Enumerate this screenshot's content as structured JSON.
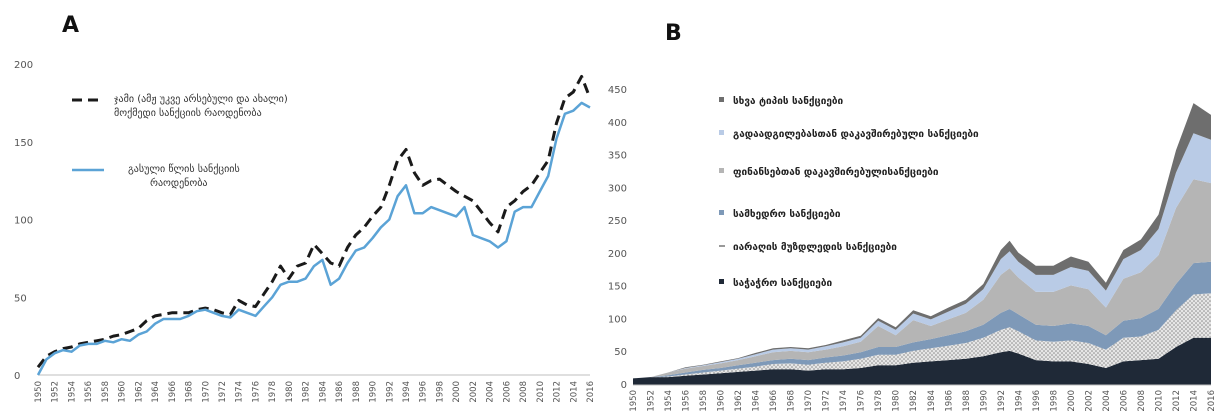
{
  "chart_data": [
    {
      "type": "line",
      "panel": "A",
      "title": "",
      "xlabel": "",
      "ylabel": "",
      "ylim": [
        0,
        200
      ],
      "yticks": [
        0,
        50,
        100,
        150,
        200
      ],
      "xticks": [
        "1950",
        "1952",
        "1954",
        "1956",
        "1958",
        "1960",
        "1962",
        "1964",
        "1966",
        "1968",
        "1970",
        "1972",
        "1974",
        "1976",
        "1978",
        "1980",
        "1982",
        "1984",
        "1986",
        "1988",
        "1990",
        "1992",
        "1994",
        "1996",
        "1998",
        "2000",
        "2002",
        "2004",
        "2006",
        "2008",
        "2010",
        "2012",
        "2014",
        "2016"
      ],
      "grid": false,
      "legend_position": "top-left",
      "x": [
        1950,
        1951,
        1952,
        1953,
        1954,
        1955,
        1956,
        1957,
        1958,
        1959,
        1960,
        1961,
        1962,
        1963,
        1964,
        1965,
        1966,
        1967,
        1968,
        1969,
        1970,
        1971,
        1972,
        1973,
        1974,
        1975,
        1976,
        1977,
        1978,
        1979,
        1980,
        1981,
        1982,
        1983,
        1984,
        1985,
        1986,
        1987,
        1988,
        1989,
        1990,
        1991,
        1992,
        1993,
        1994,
        1995,
        1996,
        1997,
        1998,
        1999,
        2000,
        2001,
        2002,
        2003,
        2004,
        2005,
        2006,
        2007,
        2008,
        2009,
        2010,
        2011,
        2012,
        2013,
        2014,
        2015,
        2016
      ],
      "series": [
        {
          "name": "ჯამი (ამჟ უკვე არსებული და ახალი) მოქმედი სანქციის რაოდენობა",
          "style": "dashed",
          "color": "#1a1a1a",
          "values": [
            5,
            12,
            15,
            17,
            18,
            20,
            21,
            22,
            23,
            25,
            26,
            28,
            30,
            35,
            38,
            39,
            40,
            40,
            40,
            42,
            43,
            42,
            40,
            39,
            48,
            45,
            44,
            52,
            60,
            70,
            62,
            70,
            72,
            84,
            78,
            72,
            70,
            82,
            90,
            95,
            102,
            108,
            122,
            138,
            145,
            130,
            122,
            125,
            126,
            122,
            118,
            115,
            112,
            105,
            98,
            92,
            108,
            112,
            118,
            122,
            130,
            138,
            162,
            178,
            182,
            192,
            178
          ]
        },
        {
          "name": "გასული წლის სანქციის რაოდენობა",
          "style": "solid",
          "color": "#5ba3d6",
          "values": [
            0,
            10,
            14,
            16,
            15,
            19,
            20,
            20,
            22,
            21,
            23,
            22,
            26,
            28,
            33,
            36,
            36,
            36,
            38,
            41,
            42,
            40,
            38,
            37,
            42,
            40,
            38,
            44,
            50,
            58,
            60,
            60,
            62,
            70,
            74,
            58,
            62,
            72,
            80,
            82,
            88,
            95,
            100,
            115,
            122,
            104,
            104,
            108,
            106,
            104,
            102,
            108,
            90,
            88,
            86,
            82,
            86,
            105,
            108,
            108,
            118,
            128,
            152,
            168,
            170,
            175,
            172
          ]
        }
      ]
    },
    {
      "type": "area",
      "panel": "B",
      "stacked": true,
      "title": "",
      "xlabel": "",
      "ylabel": "",
      "ylim": [
        0,
        450
      ],
      "yticks": [
        0,
        50,
        100,
        150,
        200,
        250,
        300,
        350,
        400,
        450
      ],
      "xticks": [
        "1950",
        "1952",
        "1954",
        "1956",
        "1958",
        "1960",
        "1962",
        "1964",
        "1966",
        "1968",
        "1970",
        "1972",
        "1974",
        "1976",
        "1978",
        "1980",
        "1982",
        "1984",
        "1986",
        "1988",
        "1990",
        "1992",
        "1994",
        "1996",
        "1998",
        "2000",
        "2002",
        "2004",
        "2006",
        "2008",
        "2010",
        "2012",
        "2014",
        "2016"
      ],
      "grid": false,
      "legend_position": "top-left",
      "x": [
        1950,
        1952,
        1954,
        1956,
        1958,
        1960,
        1962,
        1964,
        1966,
        1968,
        1970,
        1972,
        1974,
        1976,
        1978,
        1980,
        1982,
        1984,
        1986,
        1988,
        1990,
        1992,
        1993,
        1994,
        1996,
        1998,
        2000,
        2002,
        2004,
        2006,
        2008,
        2010,
        2012,
        2014,
        2016
      ],
      "series": [
        {
          "name": "საჭაჭრო სანქციები",
          "color": "#1f2937",
          "values": [
            10,
            12,
            12,
            14,
            16,
            18,
            20,
            22,
            24,
            24,
            22,
            24,
            24,
            26,
            30,
            30,
            34,
            36,
            38,
            40,
            44,
            50,
            52,
            48,
            38,
            36,
            36,
            32,
            26,
            36,
            38,
            40,
            58,
            72,
            72
          ]
        },
        {
          "name": "იარაღის მუზდლედის სანქციები",
          "color": "#d9d9d9",
          "pattern": "dots",
          "values": [
            0,
            0,
            1,
            2,
            3,
            4,
            5,
            6,
            8,
            9,
            9,
            10,
            12,
            14,
            16,
            16,
            18,
            20,
            22,
            24,
            28,
            34,
            36,
            34,
            30,
            30,
            32,
            32,
            28,
            36,
            36,
            44,
            56,
            66,
            68
          ]
        },
        {
          "name": "სამხედრო სანქციები",
          "color": "#7e99b8",
          "values": [
            0,
            0,
            2,
            3,
            4,
            4,
            5,
            6,
            6,
            7,
            7,
            8,
            9,
            10,
            12,
            12,
            13,
            14,
            16,
            18,
            20,
            26,
            28,
            26,
            24,
            24,
            26,
            26,
            22,
            26,
            28,
            32,
            40,
            48,
            48
          ]
        },
        {
          "name": "ფინანსებთან დაკავშირებულისანქციები",
          "color": "#b5b5b5",
          "values": [
            0,
            0,
            4,
            6,
            6,
            7,
            8,
            10,
            12,
            12,
            12,
            12,
            14,
            16,
            32,
            18,
            34,
            20,
            24,
            28,
            38,
            58,
            62,
            56,
            50,
            52,
            58,
            56,
            42,
            64,
            70,
            82,
            116,
            128,
            120
          ]
        },
        {
          "name": "გადაადგილებასთან დაკავშირებული სანქციები",
          "color": "#b9cbe6",
          "values": [
            0,
            0,
            0,
            1,
            1,
            2,
            2,
            3,
            4,
            4,
            4,
            5,
            6,
            6,
            8,
            8,
            10,
            10,
            12,
            14,
            16,
            24,
            26,
            24,
            26,
            26,
            28,
            28,
            26,
            30,
            34,
            40,
            54,
            70,
            66
          ]
        },
        {
          "name": "სხვა ტიპის სანქციები",
          "color": "#6e6e6e",
          "values": [
            0,
            0,
            0,
            1,
            1,
            1,
            1,
            2,
            2,
            2,
            2,
            2,
            3,
            3,
            4,
            4,
            5,
            5,
            6,
            6,
            8,
            14,
            16,
            14,
            14,
            14,
            16,
            14,
            12,
            14,
            16,
            22,
            34,
            46,
            38
          ]
        }
      ]
    }
  ],
  "labels": {
    "panel_a": "A",
    "panel_b": "B"
  },
  "colors": {
    "axis": "#bfbfbf",
    "tick_text": "#555555"
  }
}
